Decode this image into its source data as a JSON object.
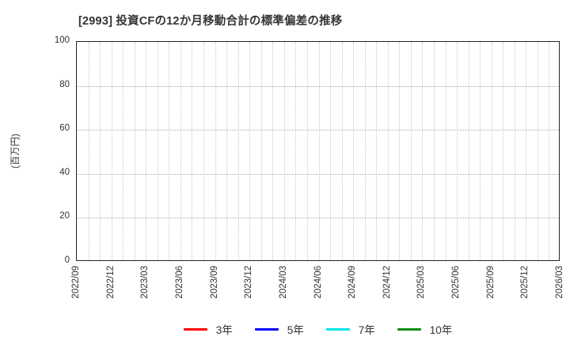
{
  "title": "[2993]  投資CFの12か月移動合計の標準偏差の推移",
  "y_axis": {
    "label": "(百万円)",
    "ticks": [
      0,
      20,
      40,
      60,
      80,
      100
    ],
    "min": 0,
    "max": 100
  },
  "x_axis": {
    "labels": [
      "2022/09",
      "2022/12",
      "2023/03",
      "2023/06",
      "2023/09",
      "2023/12",
      "2024/03",
      "2024/06",
      "2024/09",
      "2024/12",
      "2025/03",
      "2025/06",
      "2025/09",
      "2025/12",
      "2026/03"
    ],
    "months_total": 42,
    "label_every_months": 3
  },
  "legend": [
    {
      "label": "3年",
      "color": "#ff0000"
    },
    {
      "label": "5年",
      "color": "#0000ff"
    },
    {
      "label": "7年",
      "color": "#00e5e5"
    },
    {
      "label": "10年",
      "color": "#0e8c0e"
    }
  ],
  "chart_data": {
    "type": "line",
    "title": "[2993]  投資CFの12か月移動合計の標準偏差の推移",
    "xlabel": "",
    "ylabel": "(百万円)",
    "ylim": [
      0,
      100
    ],
    "x_categories": [
      "2022/09",
      "2022/12",
      "2023/03",
      "2023/06",
      "2023/09",
      "2023/12",
      "2024/03",
      "2024/06",
      "2024/09",
      "2024/12",
      "2025/03",
      "2025/06",
      "2025/09",
      "2025/12",
      "2026/03"
    ],
    "series": [
      {
        "name": "3年",
        "color": "#ff0000",
        "values": []
      },
      {
        "name": "5年",
        "color": "#0000ff",
        "values": []
      },
      {
        "name": "7年",
        "color": "#00e5e5",
        "values": []
      },
      {
        "name": "10年",
        "color": "#0e8c0e",
        "values": []
      }
    ],
    "grid": "on",
    "grid_style": "dotted, vertical line each month, horizontal line each 20 units",
    "legend_position": "bottom",
    "note": "plot area is empty - no data points are drawn for any series"
  }
}
